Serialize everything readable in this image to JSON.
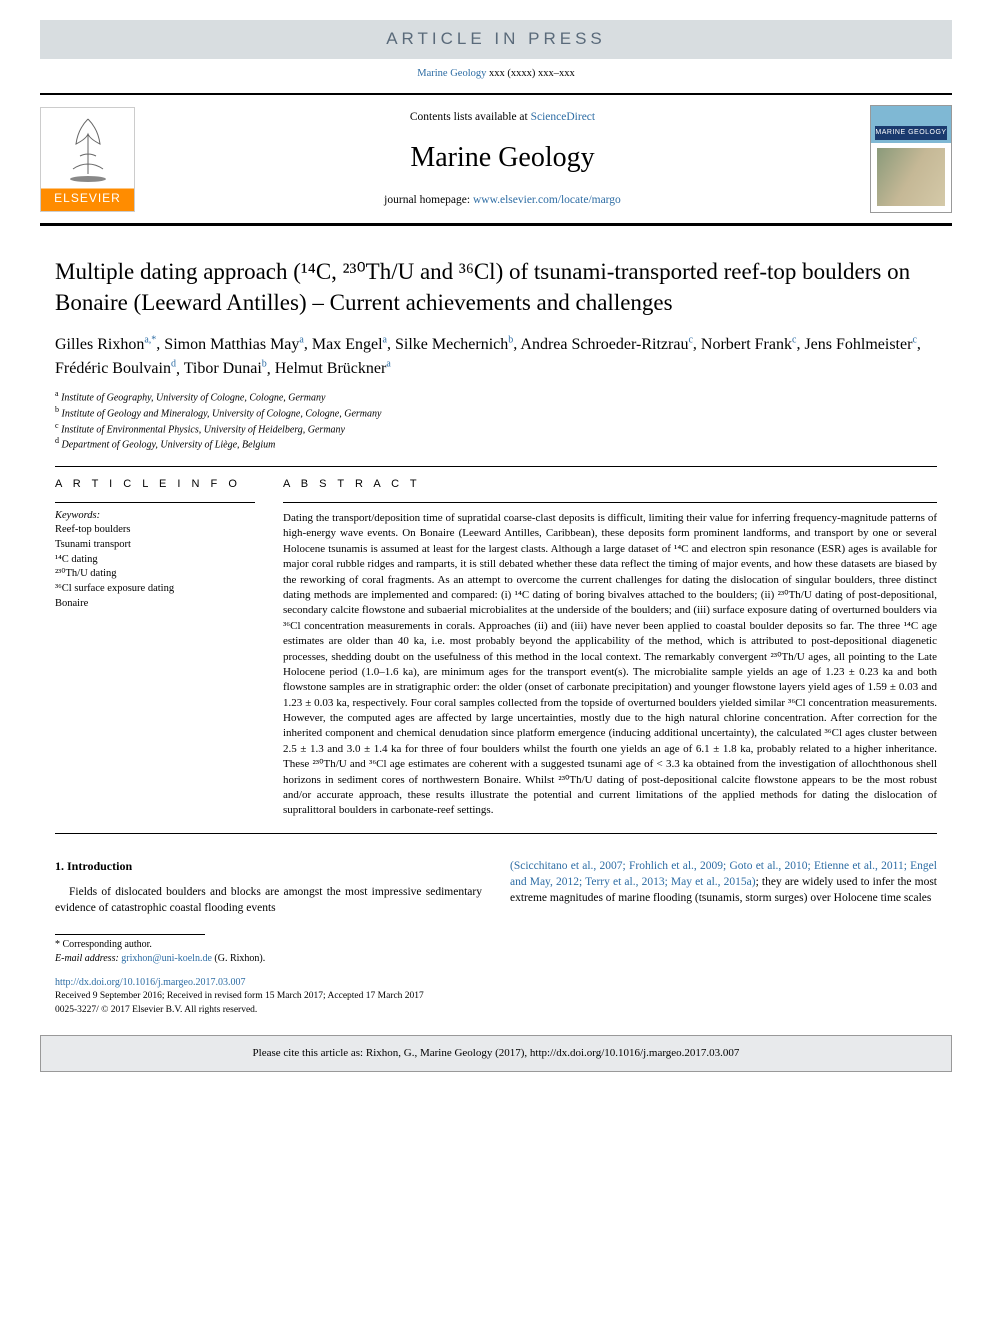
{
  "banner": {
    "in_press": "ARTICLE IN PRESS"
  },
  "header_cite": {
    "journal_link_text": "Marine Geology",
    "tail": " xxx (xxxx) xxx–xxx"
  },
  "masthead": {
    "elsevier": "ELSEVIER",
    "contents_prefix": "Contents lists available at ",
    "contents_link": "ScienceDirect",
    "journal": "Marine Geology",
    "homepage_prefix": "journal homepage: ",
    "homepage_link": "www.elsevier.com/locate/margo",
    "cover_title": "MARINE GEOLOGY"
  },
  "title": "Multiple dating approach (¹⁴C, ²³⁰Th/U and ³⁶Cl) of tsunami-transported reef-top boulders on Bonaire (Leeward Antilles) – Current achievements and challenges",
  "authors_html": [
    {
      "name": "Gilles Rixhon",
      "sup": "a,*"
    },
    {
      "name": "Simon Matthias May",
      "sup": "a"
    },
    {
      "name": "Max Engel",
      "sup": "a"
    },
    {
      "name": "Silke Mechernich",
      "sup": "b"
    },
    {
      "name": "Andrea Schroeder-Ritzrau",
      "sup": "c"
    },
    {
      "name": "Norbert Frank",
      "sup": "c"
    },
    {
      "name": "Jens Fohlmeister",
      "sup": "c"
    },
    {
      "name": "Frédéric Boulvain",
      "sup": "d"
    },
    {
      "name": "Tibor Dunai",
      "sup": "b"
    },
    {
      "name": "Helmut Brückner",
      "sup": "a"
    }
  ],
  "affiliations": [
    {
      "sup": "a",
      "text": "Institute of Geography, University of Cologne, Cologne, Germany"
    },
    {
      "sup": "b",
      "text": "Institute of Geology and Mineralogy, University of Cologne, Cologne, Germany"
    },
    {
      "sup": "c",
      "text": "Institute of Environmental Physics, University of Heidelberg, Germany"
    },
    {
      "sup": "d",
      "text": "Department of Geology, University of Liège, Belgium"
    }
  ],
  "info": {
    "label": "A R T I C L E  I N F O",
    "keywords_label": "Keywords:",
    "keywords": [
      "Reef-top boulders",
      "Tsunami transport",
      "¹⁴C dating",
      "²³⁰Th/U dating",
      "³⁶Cl surface exposure dating",
      "Bonaire"
    ]
  },
  "abstract": {
    "label": "A B S T R A C T",
    "text": "Dating the transport/deposition time of supratidal coarse-clast deposits is difficult, limiting their value for inferring frequency-magnitude patterns of high-energy wave events. On Bonaire (Leeward Antilles, Caribbean), these deposits form prominent landforms, and transport by one or several Holocene tsunamis is assumed at least for the largest clasts. Although a large dataset of ¹⁴C and electron spin resonance (ESR) ages is available for major coral rubble ridges and ramparts, it is still debated whether these data reflect the timing of major events, and how these datasets are biased by the reworking of coral fragments. As an attempt to overcome the current challenges for dating the dislocation of singular boulders, three distinct dating methods are implemented and compared: (i) ¹⁴C dating of boring bivalves attached to the boulders; (ii) ²³⁰Th/U dating of post-depositional, secondary calcite flowstone and subaerial microbialites at the underside of the boulders; and (iii) surface exposure dating of overturned boulders via ³⁶Cl concentration measurements in corals. Approaches (ii) and (iii) have never been applied to coastal boulder deposits so far. The three ¹⁴C age estimates are older than 40 ka, i.e. most probably beyond the applicability of the method, which is attributed to post-depositional diagenetic processes, shedding doubt on the usefulness of this method in the local context. The remarkably convergent ²³⁰Th/U ages, all pointing to the Late Holocene period (1.0–1.6 ka), are minimum ages for the transport event(s). The microbialite sample yields an age of 1.23 ± 0.23 ka and both flowstone samples are in stratigraphic order: the older (onset of carbonate precipitation) and younger flowstone layers yield ages of 1.59 ± 0.03 and 1.23 ± 0.03 ka, respectively. Four coral samples collected from the topside of overturned boulders yielded similar ³⁶Cl concentration measurements. However, the computed ages are affected by large uncertainties, mostly due to the high natural chlorine concentration. After correction for the inherited component and chemical denudation since platform emergence (inducing additional uncertainty), the calculated ³⁶Cl ages cluster between 2.5 ± 1.3 and 3.0 ± 1.4 ka for three of four boulders whilst the fourth one yields an age of 6.1 ± 1.8 ka, probably related to a higher inheritance. These ²³⁰Th/U and ³⁶Cl age estimates are coherent with a suggested tsunami age of < 3.3 ka obtained from the investigation of allochthonous shell horizons in sediment cores of northwestern Bonaire. Whilst ²³⁰Th/U dating of post-depositional calcite flowstone appears to be the most robust and/or accurate approach, these results illustrate the potential and current limitations of the applied methods for dating the dislocation of supralittoral boulders in carbonate-reef settings."
  },
  "intro": {
    "heading": "1. Introduction",
    "col1": "Fields of dislocated boulders and blocks are amongst the most impressive sedimentary evidence of catastrophic coastal flooding events",
    "col2_refs": "(Scicchitano et al., 2007; Frohlich et al., 2009; Goto et al., 2010; Etienne et al., 2011; Engel and May, 2012; Terry et al., 2013; May et al., 2015a)",
    "col2_tail": "; they are widely used to infer the most extreme magnitudes of marine flooding (tsunamis, storm surges) over Holocene time scales"
  },
  "footnotes": {
    "corresp_marker": "* Corresponding author.",
    "email_label": "E-mail address: ",
    "email": "grixhon@uni-koeln.de",
    "email_tail": " (G. Rixhon).",
    "doi": "http://dx.doi.org/10.1016/j.margeo.2017.03.007",
    "received": "Received 9 September 2016; Received in revised form 15 March 2017; Accepted 17 March 2017",
    "copyright": "0025-3227/ © 2017 Elsevier B.V. All rights reserved."
  },
  "citebox": "Please cite this article as: Rixhon, G., Marine Geology (2017), http://dx.doi.org/10.1016/j.margeo.2017.03.007",
  "colors": {
    "link": "#2e6da4",
    "banner_bg": "#d8dde0",
    "banner_text": "#5a6a7a",
    "elsevier_orange": "#ff8c00",
    "citebox_bg": "#e8eaec"
  }
}
